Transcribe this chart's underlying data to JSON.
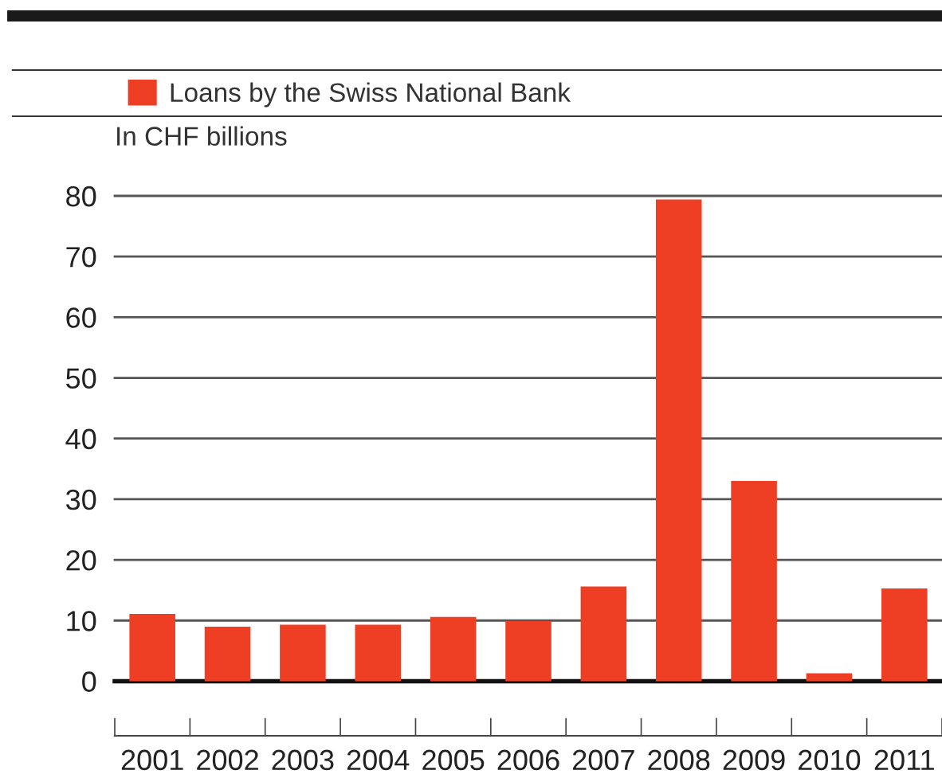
{
  "chart_data": {
    "type": "bar",
    "ylabel": "In CHF billions",
    "categories": [
      "2001",
      "2002",
      "2003",
      "2004",
      "2005",
      "2006",
      "2007",
      "2008",
      "2009",
      "2010",
      "2011"
    ],
    "series": [
      {
        "name": "Loans by the Swiss National Bank",
        "color": "#ee3e23",
        "values": [
          11.1,
          9.0,
          9.3,
          9.3,
          10.6,
          9.9,
          15.6,
          79.4,
          33.0,
          1.3,
          15.3
        ]
      }
    ],
    "ylim": [
      -9,
      80
    ],
    "yticks": [
      0,
      10,
      20,
      30,
      40,
      50,
      60,
      70,
      80
    ],
    "grid": "y",
    "legend": "top left"
  }
}
